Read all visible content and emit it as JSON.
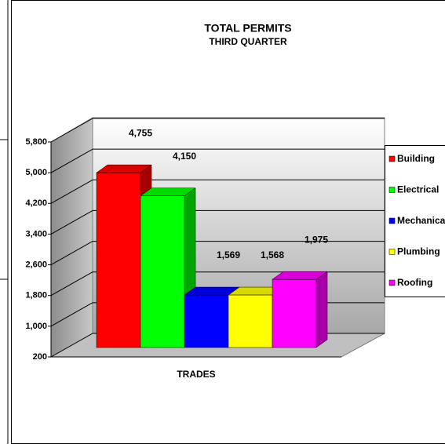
{
  "chart_data": {
    "type": "bar3d",
    "title": "TOTAL PERMITS",
    "subtitle": "THIRD QUARTER",
    "x_label": "TRADES",
    "categories": [
      "Building",
      "Electrical",
      "Mechanical",
      "Plumbing",
      "Roofing"
    ],
    "values": [
      4755,
      4150,
      1569,
      1568,
      1975
    ],
    "value_labels": [
      "4,755",
      "4,150",
      "1,569",
      "1,568",
      "1,975"
    ],
    "colors": [
      "#ff0000",
      "#00ff00",
      "#0000ff",
      "#ffff00",
      "#ff00ff"
    ],
    "ylim": [
      200,
      5800
    ],
    "yticks": [
      200,
      {
        "value": 1000,
        "label": "1,000"
      },
      {
        "value": 1800,
        "label": "1,800"
      },
      {
        "value": 2600,
        "label": "2,600"
      },
      {
        "value": 3400,
        "label": "3,400"
      },
      {
        "value": 4200,
        "label": "4,200"
      },
      {
        "value": 5000,
        "label": "5,000"
      },
      {
        "value": 5800,
        "label": "5,800"
      }
    ],
    "grid": true,
    "legend": "right"
  }
}
